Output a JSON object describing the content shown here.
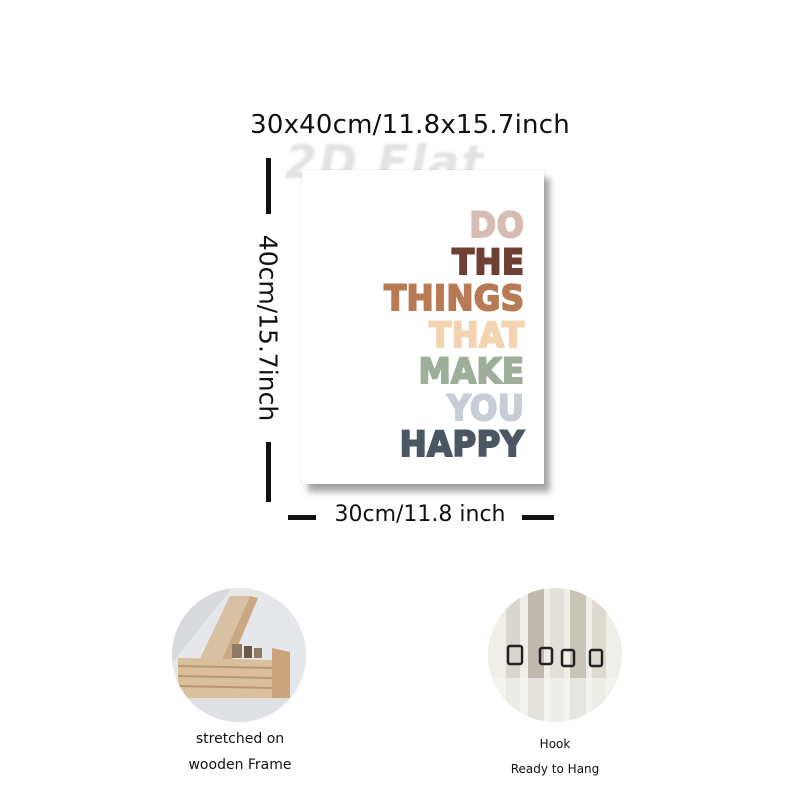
{
  "dimensions": {
    "overall": "30x40cm/11.8x15.7inch",
    "height": "40cm/15.7inch",
    "width": "30cm/11.8 inch"
  },
  "watermark": "2D Flat",
  "poster": {
    "lines": [
      {
        "text": "DO",
        "color": "#d6bcb3"
      },
      {
        "text": "THE",
        "color": "#6e3f33"
      },
      {
        "text": "THINGS",
        "color": "#b77a55"
      },
      {
        "text": "THAT",
        "color": "#f3d3b0"
      },
      {
        "text": "MAKE",
        "color": "#9eae9b"
      },
      {
        "text": "YOU",
        "color": "#c7ccd5"
      },
      {
        "text": "HAPPY",
        "color": "#4c5663"
      }
    ]
  },
  "features": [
    {
      "icon": "wooden-frame-photo",
      "caption_line1": "stretched on",
      "caption_line2": "wooden Frame"
    },
    {
      "icon": "hook-photo",
      "caption_line1": "Hook",
      "caption_line2": "Ready to Hang"
    }
  ]
}
